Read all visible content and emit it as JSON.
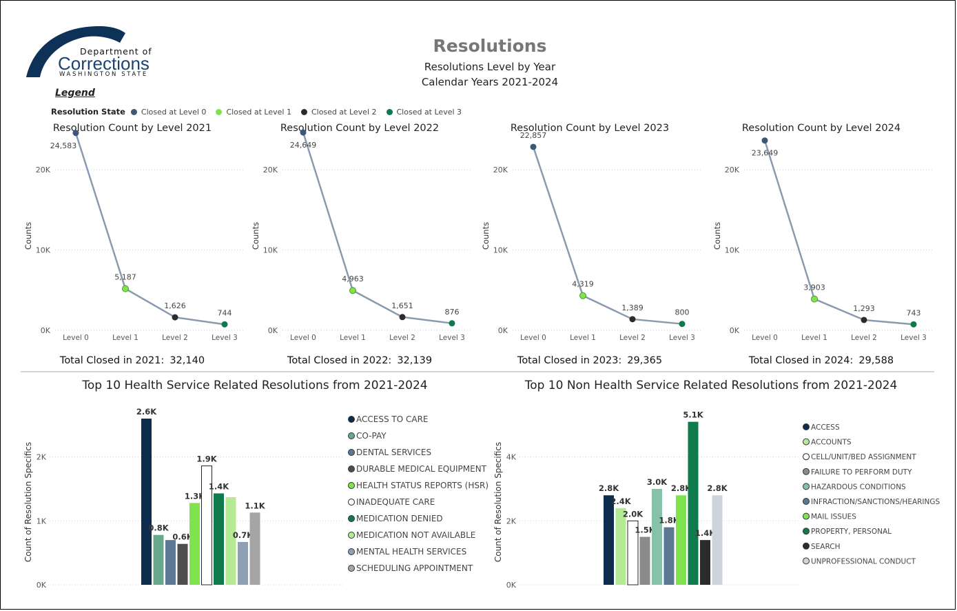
{
  "header": {
    "logo": {
      "line1": "Department of",
      "line2": "Corrections",
      "line3": "WASHINGTON STATE"
    },
    "title": "Resolutions",
    "subtitle1": "Resolutions Level by Year",
    "subtitle2": "Calendar Years 2021-2024"
  },
  "legend": {
    "title": "Legend",
    "label": "Resolution State",
    "items": [
      {
        "name": "Closed at Level 0",
        "color": "#3b5878"
      },
      {
        "name": "Closed at Level 1",
        "color": "#7ee34c"
      },
      {
        "name": "Closed at Level 2",
        "color": "#2b2b2b"
      },
      {
        "name": "Closed at Level 3",
        "color": "#0d7a4d"
      }
    ]
  },
  "chart_data": [
    {
      "type": "line",
      "title": "Resolution Count by Level 2021",
      "categories": [
        "Level 0",
        "Level 1",
        "Level 2",
        "Level 3"
      ],
      "values": [
        24583,
        5187,
        1626,
        744
      ],
      "value_labels": [
        "24,583",
        "5,187",
        "1,626",
        "744"
      ],
      "ylabel": "Counts",
      "ylim": [
        0,
        25000
      ],
      "yticks": [
        0,
        10000,
        20000
      ],
      "ytick_labels": [
        "0K",
        "10K",
        "20K"
      ],
      "total_label": "Total Closed in 2021:",
      "total_value": "32,140"
    },
    {
      "type": "line",
      "title": "Resolution Count by Level 2022",
      "categories": [
        "Level 0",
        "Level 1",
        "Level 2",
        "Level 3"
      ],
      "values": [
        24649,
        4963,
        1651,
        876
      ],
      "value_labels": [
        "24,649",
        "4,963",
        "1,651",
        "876"
      ],
      "ylabel": "Counts",
      "ylim": [
        0,
        25000
      ],
      "yticks": [
        0,
        10000,
        20000
      ],
      "ytick_labels": [
        "0K",
        "10K",
        "20K"
      ],
      "total_label": "Total Closed in 2022:",
      "total_value": "32,139"
    },
    {
      "type": "line",
      "title": "Resolution Count by Level 2023",
      "categories": [
        "Level 0",
        "Level 1",
        "Level 2",
        "Level 3"
      ],
      "values": [
        22857,
        4319,
        1389,
        800
      ],
      "value_labels": [
        "22,857",
        "4,319",
        "1,389",
        "800"
      ],
      "ylabel": "Counts",
      "ylim": [
        0,
        25000
      ],
      "yticks": [
        0,
        10000,
        20000
      ],
      "ytick_labels": [
        "0K",
        "10K",
        "20K"
      ],
      "total_label": "Total Closed in 2023:",
      "total_value": "29,365"
    },
    {
      "type": "line",
      "title": "Resolution Count by Level 2024",
      "categories": [
        "Level 0",
        "Level 1",
        "Level 2",
        "Level 3"
      ],
      "values": [
        23649,
        3903,
        1293,
        743
      ],
      "value_labels": [
        "23,649",
        "3,903",
        "1,293",
        "743"
      ],
      "ylabel": "Counts",
      "ylim": [
        0,
        25000
      ],
      "yticks": [
        0,
        10000,
        20000
      ],
      "ytick_labels": [
        "0K",
        "10K",
        "20K"
      ],
      "total_label": "Total Closed in 2024:",
      "total_value": "29,588"
    },
    {
      "type": "bar",
      "title": "Top 10 Health Service Related Resolutions from 2021-2024",
      "ylabel": "Count of Resolution Specifics",
      "ylim": [
        0,
        2600
      ],
      "yticks": [
        0,
        1000,
        2000
      ],
      "ytick_labels": [
        "0K",
        "1K",
        "2K"
      ],
      "categories": [
        "ACCESS TO CARE",
        "CO-PAY",
        "DENTAL SERVICES",
        "DURABLE MEDICAL EQUIPMENT",
        "HEALTH STATUS REPORTS (HSR)",
        "INADEQUATE CARE",
        "MEDICATION DENIED",
        "MEDICATION NOT AVAILABLE",
        "MENTAL HEALTH SERVICES",
        "SCHEDULING APPOINTMENT"
      ],
      "values": [
        2600,
        780,
        700,
        640,
        1280,
        1860,
        1430,
        1370,
        670,
        1130
      ],
      "value_labels": [
        "2.6K",
        "0.8K",
        "",
        "0.6K",
        "1.3K",
        "1.9K",
        "1.4K",
        "",
        "0.7K",
        "1.1K"
      ],
      "colors": [
        "#0e2d4e",
        "#69a98b",
        "#5d7894",
        "#4e4e4e",
        "#7ee34c",
        "#ffffff",
        "#0f7a4a",
        "#b4ea93",
        "#8ea0b6",
        "#a5a5a5"
      ]
    },
    {
      "type": "bar",
      "title": "Top 10 Non Health Service Related Resolutions from 2021-2024",
      "ylabel": "Count of Resolution Specifics",
      "ylim": [
        0,
        5200
      ],
      "yticks": [
        0,
        2000,
        4000
      ],
      "ytick_labels": [
        "0K",
        "2K",
        "4K"
      ],
      "categories": [
        "ACCESS",
        "ACCOUNTS",
        "CELL/UNIT/BED ASSIGNMENT",
        "FAILURE TO PERFORM DUTY",
        "HAZARDOUS CONDITIONS",
        "INFRACTION/SANCTIONS/HEARINGS",
        "MAIL ISSUES",
        "PROPERTY, PERSONAL",
        "SEARCH",
        "UNPROFESSIONAL CONDUCT"
      ],
      "values": [
        2800,
        2400,
        2000,
        1500,
        3000,
        1800,
        2800,
        5100,
        1400,
        2800
      ],
      "value_labels": [
        "2.8K",
        "2.4K",
        "2.0K",
        "1.5K",
        "3.0K",
        "1.8K",
        "2.8K",
        "5.1K",
        "1.4K",
        "2.8K"
      ],
      "colors": [
        "#0e2d4e",
        "#b4ea93",
        "#ffffff",
        "#8a8a8a",
        "#86c2aa",
        "#5d7894",
        "#7ee34c",
        "#0f7a4a",
        "#2b2b2b",
        "#cdd4dc"
      ]
    }
  ]
}
